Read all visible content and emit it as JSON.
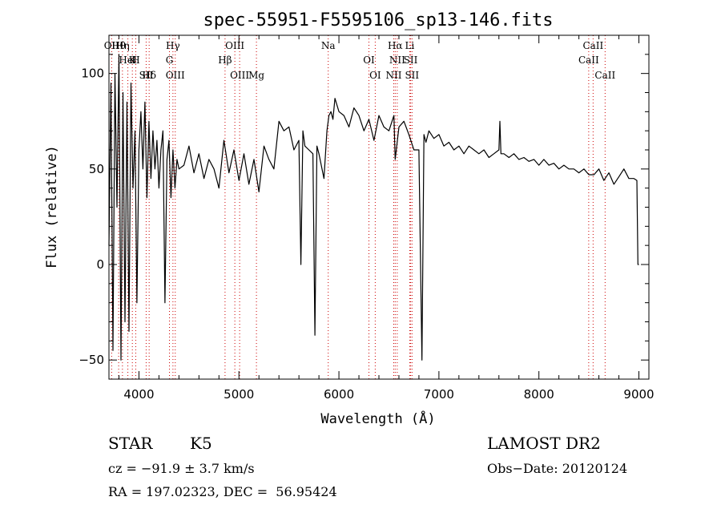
{
  "chart_data": {
    "type": "line",
    "title": "spec-55951-F5595106_sp13-146.fits",
    "xlabel": "Wavelength (Å)",
    "ylabel": "Flux (relative)",
    "xlim": [
      3700,
      9100
    ],
    "ylim": [
      -60,
      120
    ],
    "xticks": [
      4000,
      5000,
      6000,
      7000,
      8000,
      9000
    ],
    "xtick_labels": [
      "4000",
      "5000",
      "6000",
      "7000",
      "8000",
      "9000"
    ],
    "yticks": [
      -50,
      0,
      50,
      100
    ],
    "ytick_labels": [
      "−50",
      "0",
      "50",
      "100"
    ],
    "grid": false,
    "line_color": "#000000",
    "marker_color": "#cc0000",
    "series": [
      {
        "x": [
          3700,
          3720,
          3740,
          3760,
          3780,
          3800,
          3820,
          3840,
          3860,
          3880,
          3900,
          3920,
          3940,
          3960,
          3980,
          4000,
          4020,
          4040,
          4060,
          4080,
          4100,
          4120,
          4140,
          4160,
          4180,
          4200,
          4220,
          4240,
          4260,
          4280,
          4300,
          4320,
          4340,
          4360,
          4380,
          4400,
          4450,
          4500,
          4550,
          4600,
          4650,
          4700,
          4750,
          4800,
          4850,
          4900,
          4950,
          5000,
          5050,
          5100,
          5150,
          5200,
          5250,
          5300,
          5350,
          5400,
          5450,
          5500,
          5550,
          5600,
          5620,
          5640,
          5660,
          5700,
          5740,
          5760,
          5780,
          5800,
          5850,
          5880,
          5900,
          5920,
          5940,
          5960,
          6000,
          6050,
          6100,
          6150,
          6200,
          6250,
          6300,
          6350,
          6400,
          6450,
          6500,
          6550,
          6563,
          6600,
          6650,
          6700,
          6750,
          6800,
          6830,
          6850,
          6870,
          6900,
          6950,
          7000,
          7050,
          7100,
          7150,
          7200,
          7250,
          7300,
          7350,
          7400,
          7450,
          7500,
          7550,
          7600,
          7610,
          7620,
          7650,
          7700,
          7750,
          7800,
          7850,
          7900,
          7950,
          8000,
          8050,
          8100,
          8150,
          8200,
          8250,
          8300,
          8350,
          8400,
          8450,
          8500,
          8550,
          8600,
          8650,
          8700,
          8750,
          8800,
          8850,
          8900,
          8950,
          8980,
          8990,
          9000
        ],
        "y": [
          10,
          95,
          -45,
          100,
          30,
          110,
          -50,
          90,
          -30,
          85,
          -35,
          95,
          40,
          70,
          -20,
          60,
          80,
          50,
          85,
          35,
          75,
          45,
          70,
          50,
          65,
          40,
          60,
          70,
          -20,
          55,
          65,
          35,
          60,
          40,
          55,
          50,
          52,
          62,
          48,
          58,
          45,
          55,
          50,
          40,
          65,
          48,
          60,
          44,
          58,
          42,
          55,
          38,
          62,
          55,
          50,
          75,
          70,
          72,
          60,
          65,
          0,
          70,
          62,
          60,
          58,
          -37,
          62,
          58,
          45,
          70,
          78,
          80,
          76,
          87,
          80,
          78,
          72,
          82,
          78,
          70,
          76,
          65,
          78,
          72,
          70,
          78,
          55,
          72,
          75,
          68,
          60,
          60,
          -50,
          68,
          64,
          70,
          66,
          68,
          62,
          64,
          60,
          62,
          58,
          62,
          60,
          58,
          60,
          56,
          58,
          60,
          75,
          58,
          58,
          56,
          58,
          55,
          56,
          54,
          55,
          52,
          55,
          52,
          53,
          50,
          52,
          50,
          50,
          48,
          50,
          47,
          47,
          50,
          44,
          48,
          42,
          46,
          50,
          45,
          45,
          44,
          0,
          0
        ]
      }
    ],
    "annotations": [
      {
        "text": "Hθ",
        "x": 3797
      },
      {
        "text": "K",
        "x": 3934
      },
      {
        "text": "Hδ",
        "x": 4102
      },
      {
        "text": "OII",
        "x": 3727
      },
      {
        "text": "HeI",
        "x": 3889
      },
      {
        "text": "SII",
        "x": 4072
      },
      {
        "text": "Hη",
        "x": 3835
      },
      {
        "text": "H",
        "x": 3968
      },
      {
        "text": "OIII",
        "x": 4363
      },
      {
        "text": "Hγ",
        "x": 4340
      },
      {
        "text": "G",
        "x": 4305
      },
      {
        "text": "OIII",
        "x": 5007
      },
      {
        "text": "OIII",
        "x": 4959
      },
      {
        "text": "Hβ",
        "x": 4861
      },
      {
        "text": "Mg",
        "x": 5175
      },
      {
        "text": "Na",
        "x": 5893
      },
      {
        "text": "OI",
        "x": 6300
      },
      {
        "text": "OI",
        "x": 6363
      },
      {
        "text": "Hα",
        "x": 6563
      },
      {
        "text": "SII",
        "x": 6717
      },
      {
        "text": "NII",
        "x": 6548
      },
      {
        "text": "Li",
        "x": 6708
      },
      {
        "text": "NII",
        "x": 6583
      },
      {
        "text": "SII",
        "x": 6731
      },
      {
        "text": "CaII",
        "x": 8542
      },
      {
        "text": "CaII",
        "x": 8498
      },
      {
        "text": "CaII",
        "x": 8662
      }
    ]
  },
  "info": {
    "object_class": "STAR",
    "subclass": "K5",
    "survey": "LAMOST DR2",
    "cz": "cz = −91.9 ± 3.7 km/s",
    "obs_date": "Obs−Date: 20120124",
    "coords": "RA = 197.02323, DEC =  56.95424"
  }
}
